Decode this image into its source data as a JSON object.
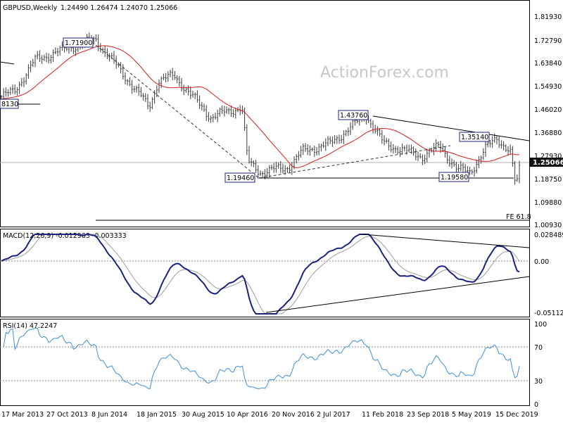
{
  "watermark": "ActionForex.com",
  "colors": {
    "price_bars": "#3a3a3a",
    "ma": "#d81b1b",
    "macd": "#1a237e",
    "signal": "#9e9e9e",
    "rsi": "#3d8fd6",
    "annotation_border": "#1a237e",
    "current_price_bg": "#111111",
    "current_price_text": "#ffffff"
  },
  "chart_data": [
    {
      "type": "candlestick",
      "symbol_label": "GBPUSD,Weekly",
      "ohlc_label": "1.24490 1.26474 1.24070 1.25066",
      "current_price": "1.25066",
      "y_ticks": [
        "1.81930",
        "1.72790",
        "1.63840",
        "1.54930",
        "1.46020",
        "1.36880",
        "1.27930",
        "1.18750",
        "1.09880",
        "1.00930"
      ],
      "ylim": [
        1.0093,
        1.8193
      ],
      "annotations": [
        "1.71900",
        "1.43760",
        "1.35140",
        "1.19460",
        "1.19580",
        "8130",
        "FE 61.8"
      ],
      "key_points": [
        {
          "date": "Mar 2013",
          "price": 1.5
        },
        {
          "date": "Jul 2014",
          "price": 1.719
        },
        {
          "date": "Apr 2015",
          "price": 1.46
        },
        {
          "date": "Jun 2015",
          "price": 1.59
        },
        {
          "date": "Oct 2016",
          "price": 1.1946
        },
        {
          "date": "Apr 2018",
          "price": 1.4376
        },
        {
          "date": "Aug 2018",
          "price": 1.27
        },
        {
          "date": "Apr 2019",
          "price": 1.3514
        },
        {
          "date": "Sep 2019",
          "price": 1.1958
        },
        {
          "date": "Dec 2019",
          "price": 1.35
        },
        {
          "date": "Mar 2020",
          "price": 1.15
        },
        {
          "date": "Apr 2020",
          "price": 1.2507
        }
      ]
    },
    {
      "type": "line",
      "label": "MACD(12,26,9) -0.012983 -0.003333",
      "y_ticks": [
        "0.028489",
        "0.00",
        "-0.051125"
      ],
      "ylim": [
        -0.051125,
        0.028489
      ],
      "series_hint": [
        "MACD",
        "Signal"
      ]
    },
    {
      "type": "line",
      "label": "RSI(14) 47.2247",
      "y_ticks": [
        "100",
        "70",
        "30",
        "0"
      ],
      "ylim": [
        0,
        100
      ],
      "levels": [
        70,
        30
      ]
    }
  ],
  "x_axis": {
    "tick_labels": [
      "17 Mar 2013",
      "27 Oct 2013",
      "8 Jun 2014",
      "18 Jan 2015",
      "30 Aug 2015",
      "10 Apr 2016",
      "20 Nov 2016",
      "2 Jul 2017",
      "11 Feb 2018",
      "23 Sep 2018",
      "5 May 2019",
      "15 Dec 2019"
    ]
  }
}
